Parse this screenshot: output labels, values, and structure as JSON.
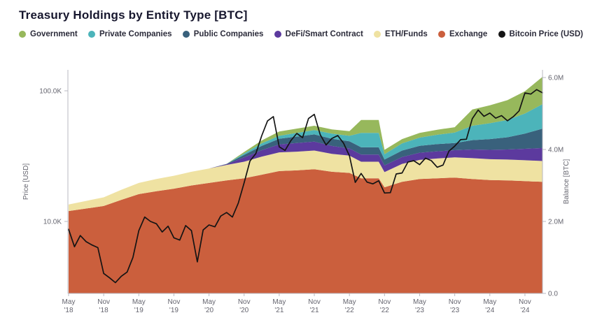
{
  "page": {
    "title": "Treasury Holdings by Entity Type [BTC]"
  },
  "legend": [
    {
      "label": "Government",
      "color": "#97b85c"
    },
    {
      "label": "Private Companies",
      "color": "#4cb4ba"
    },
    {
      "label": "Public Companies",
      "color": "#39617c"
    },
    {
      "label": "DeFi/Smart Contract",
      "color": "#5c3a9e"
    },
    {
      "label": "ETH/Funds",
      "color": "#efe2a2"
    },
    {
      "label": "Exchange",
      "color": "#cb5f3d"
    },
    {
      "label": "Bitcoin Price (USD)",
      "color": "#141414"
    }
  ],
  "chart_data": {
    "type": "area",
    "title": "Treasury Holdings by Entity Type [BTC]",
    "stacked": true,
    "values_unit": "million BTC",
    "x_dates": [
      "2018-05",
      "2018-08",
      "2018-11",
      "2019-02",
      "2019-05",
      "2019-08",
      "2019-11",
      "2020-02",
      "2020-05",
      "2020-08",
      "2020-11",
      "2021-02",
      "2021-05",
      "2021-08",
      "2021-11",
      "2022-02",
      "2022-05",
      "2022-07",
      "2022-10",
      "2022-11",
      "2023-02",
      "2023-05",
      "2023-08",
      "2023-11",
      "2024-02",
      "2024-05",
      "2024-08",
      "2024-11",
      "2025-02"
    ],
    "series": [
      {
        "name": "Exchange",
        "color": "#cb5f3d",
        "values": [
          2.29,
          2.36,
          2.43,
          2.6,
          2.76,
          2.84,
          2.91,
          3.0,
          3.07,
          3.14,
          3.2,
          3.3,
          3.4,
          3.42,
          3.45,
          3.38,
          3.35,
          3.2,
          3.2,
          2.95,
          3.1,
          3.18,
          3.2,
          3.22,
          3.18,
          3.15,
          3.14,
          3.12,
          3.1
        ]
      },
      {
        "name": "ETH/Funds",
        "color": "#efe2a2",
        "values": [
          0.18,
          0.21,
          0.24,
          0.28,
          0.31,
          0.34,
          0.36,
          0.38,
          0.4,
          0.43,
          0.46,
          0.5,
          0.52,
          0.52,
          0.52,
          0.5,
          0.48,
          0.46,
          0.46,
          0.42,
          0.5,
          0.53,
          0.55,
          0.56,
          0.58,
          0.58,
          0.58,
          0.58,
          0.58
        ]
      },
      {
        "name": "DeFi/Smart Contract",
        "color": "#5c3a9e",
        "values": [
          0,
          0,
          0,
          0,
          0,
          0,
          0,
          0,
          0,
          0.02,
          0.12,
          0.18,
          0.22,
          0.24,
          0.25,
          0.22,
          0.2,
          0.2,
          0.2,
          0.19,
          0.19,
          0.2,
          0.2,
          0.2,
          0.24,
          0.26,
          0.28,
          0.32,
          0.36
        ]
      },
      {
        "name": "Public Companies",
        "color": "#39617c",
        "values": [
          0,
          0,
          0,
          0,
          0,
          0,
          0,
          0,
          0,
          0.01,
          0.07,
          0.12,
          0.16,
          0.18,
          0.2,
          0.2,
          0.2,
          0.2,
          0.2,
          0.16,
          0.18,
          0.19,
          0.2,
          0.2,
          0.26,
          0.3,
          0.34,
          0.42,
          0.54
        ]
      },
      {
        "name": "Private Companies",
        "color": "#4cb4ba",
        "values": [
          0,
          0,
          0,
          0,
          0,
          0,
          0,
          0,
          0,
          0,
          0.04,
          0.07,
          0.08,
          0.1,
          0.12,
          0.14,
          0.15,
          0.4,
          0.4,
          0.15,
          0.2,
          0.23,
          0.26,
          0.29,
          0.4,
          0.44,
          0.48,
          0.56,
          0.68
        ]
      },
      {
        "name": "Government",
        "color": "#97b85c",
        "values": [
          0,
          0,
          0,
          0,
          0,
          0,
          0,
          0,
          0,
          0,
          0.04,
          0.08,
          0.12,
          0.12,
          0.12,
          0.12,
          0.13,
          0.36,
          0.36,
          0.12,
          0.12,
          0.13,
          0.14,
          0.15,
          0.45,
          0.5,
          0.55,
          0.62,
          0.76
        ]
      }
    ],
    "price_line": {
      "name": "Bitcoin Price (USD)",
      "color": "#141414",
      "scale": "log",
      "points": [
        [
          "2018-05",
          8700
        ],
        [
          "2018-06",
          6400
        ],
        [
          "2018-07",
          7800
        ],
        [
          "2018-08",
          7000
        ],
        [
          "2018-09",
          6600
        ],
        [
          "2018-10",
          6300
        ],
        [
          "2018-11",
          4000
        ],
        [
          "2018-12",
          3700
        ],
        [
          "2019-01",
          3400
        ],
        [
          "2019-02",
          3800
        ],
        [
          "2019-03",
          4100
        ],
        [
          "2019-04",
          5300
        ],
        [
          "2019-05",
          8500
        ],
        [
          "2019-06",
          10800
        ],
        [
          "2019-07",
          10000
        ],
        [
          "2019-08",
          9600
        ],
        [
          "2019-09",
          8300
        ],
        [
          "2019-10",
          9200
        ],
        [
          "2019-11",
          7500
        ],
        [
          "2019-12",
          7200
        ],
        [
          "2020-01",
          9300
        ],
        [
          "2020-02",
          8500
        ],
        [
          "2020-03",
          4900
        ],
        [
          "2020-04",
          8600
        ],
        [
          "2020-05",
          9400
        ],
        [
          "2020-06",
          9100
        ],
        [
          "2020-07",
          11000
        ],
        [
          "2020-08",
          11700
        ],
        [
          "2020-09",
          10800
        ],
        [
          "2020-10",
          13800
        ],
        [
          "2020-11",
          19700
        ],
        [
          "2020-12",
          29000
        ],
        [
          "2021-01",
          33100
        ],
        [
          "2021-02",
          45200
        ],
        [
          "2021-03",
          58800
        ],
        [
          "2021-04",
          63500
        ],
        [
          "2021-05",
          37300
        ],
        [
          "2021-06",
          35000
        ],
        [
          "2021-07",
          41600
        ],
        [
          "2021-08",
          47200
        ],
        [
          "2021-09",
          43800
        ],
        [
          "2021-10",
          61300
        ],
        [
          "2021-11",
          66000
        ],
        [
          "2021-12",
          46200
        ],
        [
          "2022-01",
          38500
        ],
        [
          "2022-02",
          43200
        ],
        [
          "2022-03",
          45500
        ],
        [
          "2022-04",
          39700
        ],
        [
          "2022-05",
          31800
        ],
        [
          "2022-06",
          19900
        ],
        [
          "2022-07",
          23300
        ],
        [
          "2022-08",
          20000
        ],
        [
          "2022-09",
          19400
        ],
        [
          "2022-10",
          20500
        ],
        [
          "2022-11",
          16500
        ],
        [
          "2022-12",
          16600
        ],
        [
          "2023-01",
          23100
        ],
        [
          "2023-02",
          23500
        ],
        [
          "2023-03",
          28500
        ],
        [
          "2023-04",
          29200
        ],
        [
          "2023-05",
          27200
        ],
        [
          "2023-06",
          30500
        ],
        [
          "2023-07",
          29200
        ],
        [
          "2023-08",
          26000
        ],
        [
          "2023-09",
          27000
        ],
        [
          "2023-10",
          34500
        ],
        [
          "2023-11",
          37700
        ],
        [
          "2023-12",
          42300
        ],
        [
          "2024-01",
          42600
        ],
        [
          "2024-02",
          61200
        ],
        [
          "2024-03",
          71300
        ],
        [
          "2024-04",
          63800
        ],
        [
          "2024-05",
          67500
        ],
        [
          "2024-06",
          61800
        ],
        [
          "2024-07",
          64600
        ],
        [
          "2024-08",
          59000
        ],
        [
          "2024-09",
          63300
        ],
        [
          "2024-10",
          70200
        ],
        [
          "2024-11",
          96400
        ],
        [
          "2024-12",
          94400
        ],
        [
          "2025-01",
          102100
        ],
        [
          "2025-02",
          96500
        ]
      ]
    },
    "axes": {
      "left": {
        "label": "Price [USD]",
        "scale": "log",
        "ticks": [
          "100.0K",
          "10.0K"
        ],
        "tick_values": [
          100000,
          10000
        ]
      },
      "right": {
        "label": "Balance [BTC]",
        "scale": "linear",
        "ticks": [
          "6.0M",
          "4.0M",
          "2.0M",
          "0.0"
        ],
        "tick_values": [
          6000000,
          4000000,
          2000000,
          0
        ],
        "range": [
          0,
          6200000
        ]
      },
      "x": {
        "ticks": [
          "May '18",
          "Nov '18",
          "May '19",
          "Nov '19",
          "May '20",
          "Nov '20",
          "May '21",
          "Nov '21",
          "May '22",
          "Nov '22",
          "May '23",
          "Nov '23",
          "May '24",
          "Nov '24"
        ]
      }
    },
    "legend_position": "top",
    "grid": false
  }
}
